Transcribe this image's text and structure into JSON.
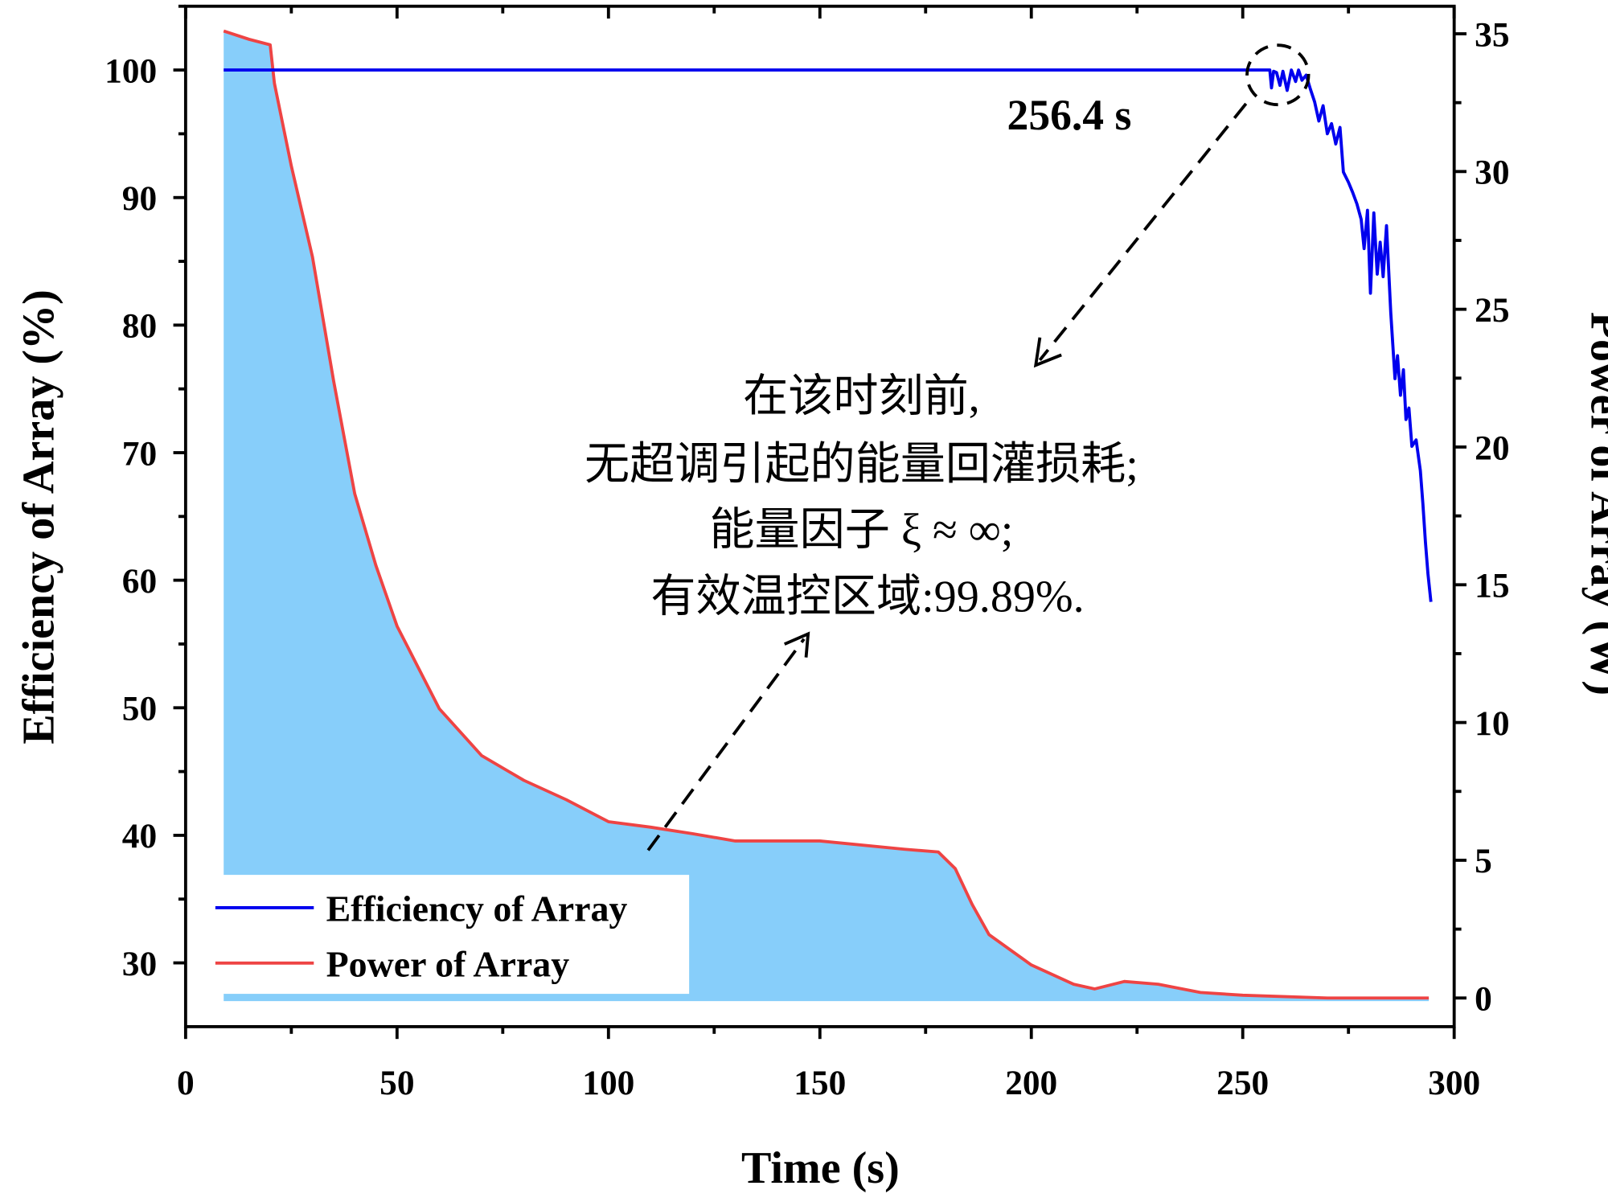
{
  "chart_data": {
    "type": "line",
    "title": "",
    "xlabel": "Time (s)",
    "ylabel": "Efficiency of Array (%)",
    "y2label": "Power of Array (W)",
    "xlim": [
      0,
      300
    ],
    "ylim": [
      25,
      105
    ],
    "y2lim": [
      -1.04,
      36
    ],
    "xticks": [
      0,
      50,
      100,
      150,
      200,
      250,
      300
    ],
    "yticks": [
      30,
      40,
      50,
      60,
      70,
      80,
      90,
      100
    ],
    "y2ticks": [
      0,
      5,
      10,
      15,
      20,
      25,
      30,
      35
    ],
    "grid": false,
    "legend_position": "bottom-left",
    "series": [
      {
        "name": "Efficiency of Array",
        "axis": "left",
        "color": "#0000EE",
        "x": [
          9,
          256.4,
          256.8,
          257.3,
          258,
          258.8,
          259.5,
          260.5,
          261.5,
          262.5,
          263.2,
          264,
          265,
          266,
          267,
          268,
          269,
          270,
          271,
          272,
          273,
          273.8,
          275,
          276,
          277,
          278,
          278.7,
          279.5,
          280.2,
          281,
          281.8,
          282.5,
          283.2,
          284,
          285,
          286,
          286.6,
          287.3,
          288,
          288.6,
          289.3,
          290,
          291,
          292,
          292.6,
          293.2,
          293.8,
          294.5
        ],
        "values": [
          100,
          100,
          98.6,
          99.9,
          99.8,
          98.8,
          99.9,
          98.4,
          100,
          99.1,
          100,
          99.2,
          99.6,
          98.5,
          97.5,
          96.0,
          97.2,
          95.0,
          95.8,
          94.2,
          95.5,
          92.0,
          91.2,
          90.4,
          89.5,
          88.3,
          86.0,
          89.0,
          82.5,
          88.8,
          84.0,
          86.5,
          83.8,
          87.8,
          81.0,
          75.8,
          77.6,
          74.5,
          76.5,
          72.6,
          73.5,
          70.5,
          71.0,
          68.6,
          66.0,
          63.0,
          60.5,
          58.3
        ]
      },
      {
        "name": "Power of Array",
        "axis": "right",
        "color": "#EE4444",
        "fill": "#87CEFA",
        "x": [
          9,
          15,
          20,
          21,
          25,
          30,
          35,
          40,
          45,
          50,
          55,
          60,
          70,
          80,
          90,
          100,
          110,
          120,
          130,
          150,
          170,
          178,
          182,
          186,
          190,
          200,
          210,
          215,
          222,
          230,
          240,
          250,
          270,
          294
        ],
        "values": [
          35.1,
          34.8,
          34.6,
          33.2,
          30.2,
          26.9,
          22.4,
          18.3,
          15.7,
          13.5,
          12.0,
          10.5,
          8.8,
          7.9,
          7.2,
          6.4,
          6.2,
          5.96,
          5.7,
          5.7,
          5.4,
          5.3,
          4.7,
          3.4,
          2.3,
          1.2,
          0.5,
          0.33,
          0.6,
          0.5,
          0.2,
          0.1,
          0.0,
          0.0
        ]
      }
    ],
    "annotations": {
      "time_label": "256.4 s",
      "text_lines": [
        "在该时刻前,",
        "无超调引起的能量回灌损耗;",
        "能量因子 ξ ≈ ∞;",
        "有效温控区域:99.89%."
      ]
    }
  }
}
